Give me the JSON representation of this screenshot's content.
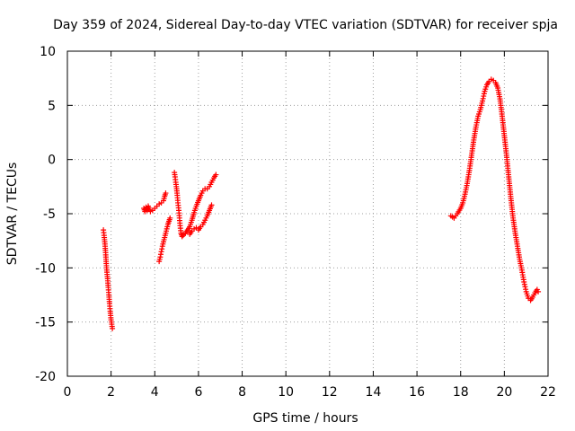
{
  "chart_data": {
    "type": "scatter",
    "title": "Day 359 of 2024, Sidereal Day-to-day VTEC variation (SDTVAR) for receiver spja",
    "xlabel": "GPS time / hours",
    "ylabel": "SDTVAR / TECUs",
    "xlim": [
      0,
      22
    ],
    "ylim": [
      -20,
      10
    ],
    "xticks": [
      "0",
      "2",
      "4",
      "6",
      "8",
      "10",
      "12",
      "14",
      "16",
      "18",
      "20",
      "22"
    ],
    "yticks": [
      "10",
      "5",
      "0",
      "-5",
      "-10",
      "-15",
      "-20"
    ],
    "grid": true,
    "marker": "+",
    "series": [
      {
        "name": "spja",
        "color": "#ff0000",
        "segments": [
          {
            "x": [
              1.65,
              1.68,
              1.72,
              1.75,
              1.78,
              1.81,
              1.84,
              1.87,
              1.9,
              1.93,
              1.96,
              2.0,
              2.03,
              2.06
            ],
            "y": [
              -6.5,
              -7.0,
              -7.8,
              -8.6,
              -9.6,
              -10.4,
              -11.0,
              -11.8,
              -12.5,
              -13.3,
              -14.0,
              -14.8,
              -15.2,
              -15.6
            ]
          },
          {
            "x": [
              3.5,
              3.55,
              3.6,
              3.65,
              3.7,
              3.75,
              3.8,
              3.9,
              4.0,
              4.1,
              4.2,
              4.3,
              4.4,
              4.45,
              4.5
            ],
            "y": [
              -4.5,
              -4.8,
              -4.4,
              -4.7,
              -4.3,
              -4.6,
              -4.8,
              -4.7,
              -4.5,
              -4.3,
              -4.1,
              -4.0,
              -3.8,
              -3.4,
              -3.1
            ]
          },
          {
            "x": [
              4.2,
              4.25,
              4.3,
              4.35,
              4.4,
              4.45,
              4.5,
              4.55,
              4.6,
              4.65,
              4.7
            ],
            "y": [
              -9.4,
              -9.0,
              -8.5,
              -8.0,
              -7.6,
              -7.2,
              -6.8,
              -6.4,
              -6.0,
              -5.7,
              -5.4
            ]
          },
          {
            "x": [
              4.9,
              4.93,
              4.96,
              5.0,
              5.03,
              5.06,
              5.1,
              5.13,
              5.16,
              5.2,
              5.25,
              5.3
            ],
            "y": [
              -1.2,
              -1.6,
              -2.1,
              -2.7,
              -3.3,
              -4.0,
              -4.7,
              -5.4,
              -6.1,
              -6.8,
              -7.1,
              -6.9
            ]
          },
          {
            "x": [
              5.3,
              5.4,
              5.5,
              5.6,
              5.7,
              5.8,
              5.9,
              6.0,
              6.1,
              6.2,
              6.3,
              6.4,
              6.5,
              6.6,
              6.7,
              6.8
            ],
            "y": [
              -7.0,
              -6.8,
              -6.5,
              -6.2,
              -5.6,
              -4.9,
              -4.3,
              -3.8,
              -3.3,
              -2.9,
              -2.7,
              -2.7,
              -2.5,
              -2.1,
              -1.7,
              -1.4
            ]
          },
          {
            "x": [
              5.6,
              5.7,
              5.8,
              5.9,
              6.0,
              6.1,
              6.2,
              6.3,
              6.4,
              6.5,
              6.6
            ],
            "y": [
              -6.9,
              -6.6,
              -6.4,
              -6.3,
              -6.5,
              -6.2,
              -6.0,
              -5.6,
              -5.2,
              -4.7,
              -4.2
            ]
          },
          {
            "x": [
              17.55,
              17.7,
              17.85,
              18.0,
              18.1,
              18.2,
              18.3,
              18.4,
              18.5,
              18.6,
              18.7,
              18.8,
              18.9,
              19.0,
              19.1,
              19.2,
              19.3,
              19.4,
              19.5,
              19.6,
              19.7,
              19.8,
              19.9,
              20.0,
              20.1,
              20.2,
              20.3,
              20.4,
              20.5,
              20.6,
              20.7,
              20.8,
              20.9,
              21.0,
              21.1,
              21.2,
              21.3,
              21.4,
              21.5,
              21.55
            ],
            "y": [
              -5.2,
              -5.4,
              -5.0,
              -4.5,
              -4.0,
              -3.2,
              -2.2,
              -1.0,
              0.4,
              1.8,
              3.0,
              4.0,
              4.6,
              5.4,
              6.3,
              6.9,
              7.2,
              7.4,
              7.3,
              7.1,
              6.6,
              5.6,
              4.0,
              2.2,
              0.4,
              -1.6,
              -3.6,
              -5.4,
              -6.8,
              -8.0,
              -9.2,
              -10.2,
              -11.3,
              -12.2,
              -12.8,
              -13.0,
              -12.7,
              -12.3,
              -12.0,
              -12.2
            ]
          }
        ]
      }
    ]
  }
}
